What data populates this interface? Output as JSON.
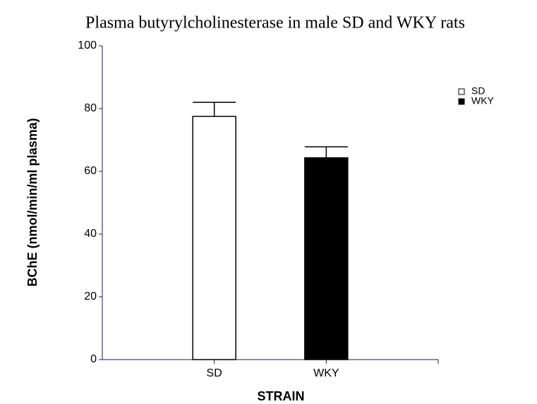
{
  "chart_data": {
    "type": "bar",
    "title": "Plasma butyrylcholinesterase in male SD and WKY rats",
    "x_label": "STRAIN",
    "y_label": "BChE (nmol/min/ml plasma)",
    "categories": [
      "SD",
      "WKY"
    ],
    "values": [
      77.5,
      64.3
    ],
    "errors": [
      4.5,
      3.5
    ],
    "colors": [
      "#ffffff",
      "#000000"
    ],
    "ylim": [
      0,
      100
    ],
    "yticks": [
      0,
      20,
      40,
      60,
      80,
      100
    ],
    "grid": false,
    "legend": "upper right"
  }
}
